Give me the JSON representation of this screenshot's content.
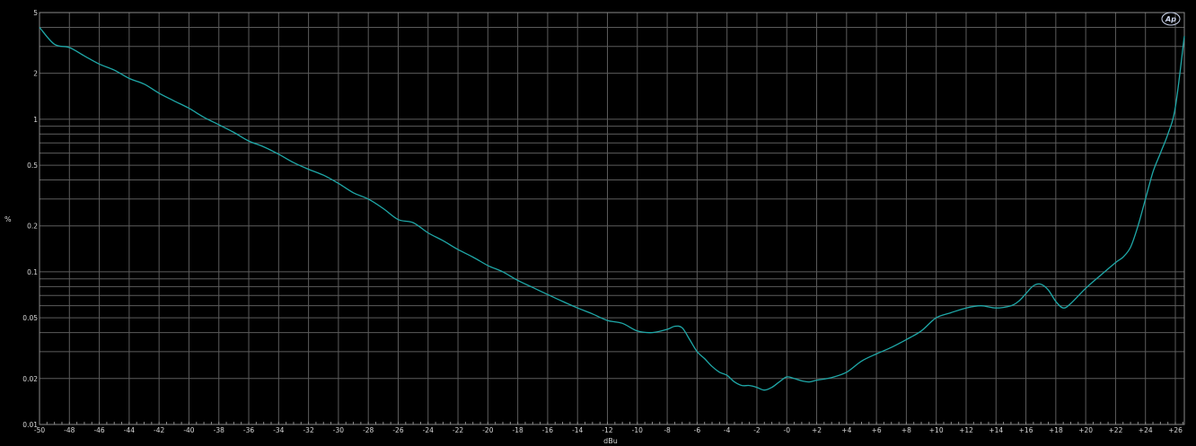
{
  "chart_data": {
    "type": "line",
    "xlabel": "dBu",
    "ylabel": "%",
    "y_scale": "log",
    "xlim": [
      -50,
      26.6
    ],
    "ylim": [
      0.01,
      5
    ],
    "grid": true,
    "x_ticks": [
      -50,
      -48,
      -46,
      -44,
      -42,
      -40,
      -38,
      -36,
      -34,
      -32,
      -30,
      -28,
      -26,
      -24,
      -22,
      -20,
      -18,
      -16,
      -14,
      -12,
      -10,
      -8,
      -6,
      -4,
      -2,
      0,
      2,
      4,
      6,
      8,
      10,
      12,
      14,
      16,
      18,
      20,
      22,
      24,
      26
    ],
    "x_tick_labels": [
      "-50",
      "-48",
      "-46",
      "-44",
      "-42",
      "-40",
      "-38",
      "-36",
      "-34",
      "-32",
      "-30",
      "-28",
      "-26",
      "-24",
      "-22",
      "-20",
      "-18",
      "-16",
      "-14",
      "-12",
      "-10",
      "-8",
      "-6",
      "-4",
      "-2",
      "-0",
      "+2",
      "+4",
      "+6",
      "+8",
      "+10",
      "+12",
      "+14",
      "+16",
      "+18",
      "+20",
      "+22",
      "+24",
      "+26"
    ],
    "y_ticks": [
      5,
      2,
      1,
      0.5,
      0.2,
      0.1,
      0.05,
      0.02,
      0.01
    ],
    "y_tick_labels": [
      "5",
      "2",
      "1",
      "0.5",
      "0.2",
      "0.1",
      "0.05",
      "0.02",
      "0.01"
    ],
    "y_gridlines": [
      4,
      3,
      2,
      1,
      0.9,
      0.8,
      0.7,
      0.6,
      0.5,
      0.4,
      0.3,
      0.2,
      0.1,
      0.09,
      0.08,
      0.07,
      0.06,
      0.05,
      0.04,
      0.03,
      0.02
    ],
    "series": [
      {
        "color": "#1fa8a8",
        "x": [
          -50,
          -49,
          -48,
          -47,
          -46,
          -45,
          -44,
          -43,
          -42,
          -41,
          -40,
          -39,
          -38,
          -37,
          -36,
          -35,
          -34,
          -33,
          -32,
          -31,
          -30,
          -29,
          -28,
          -27,
          -26,
          -25,
          -24,
          -23,
          -22,
          -21,
          -20,
          -19,
          -18,
          -17,
          -16,
          -15,
          -14,
          -13,
          -12,
          -11,
          -10,
          -9,
          -8,
          -7.5,
          -7,
          -6.5,
          -6,
          -5.5,
          -5,
          -4.5,
          -4,
          -3.5,
          -3,
          -2.5,
          -2,
          -1.5,
          -1,
          -0.5,
          0,
          0.5,
          1,
          1.5,
          2,
          3,
          4,
          5,
          6,
          7,
          8,
          9,
          10,
          11,
          12,
          13,
          14,
          15,
          15.5,
          16,
          16.5,
          17,
          17.5,
          18,
          18.5,
          19,
          20,
          21,
          22,
          22.5,
          23,
          23.5,
          24,
          24.5,
          25,
          25.5,
          26,
          26.6
        ],
        "y": [
          4.0,
          3.1,
          2.95,
          2.6,
          2.3,
          2.1,
          1.85,
          1.7,
          1.48,
          1.32,
          1.18,
          1.03,
          0.92,
          0.82,
          0.72,
          0.66,
          0.59,
          0.52,
          0.47,
          0.43,
          0.38,
          0.33,
          0.3,
          0.26,
          0.22,
          0.21,
          0.18,
          0.16,
          0.14,
          0.125,
          0.11,
          0.1,
          0.088,
          0.079,
          0.071,
          0.064,
          0.058,
          0.053,
          0.048,
          0.046,
          0.041,
          0.04,
          0.042,
          0.044,
          0.043,
          0.036,
          0.03,
          0.027,
          0.024,
          0.022,
          0.021,
          0.019,
          0.018,
          0.018,
          0.0175,
          0.0168,
          0.0175,
          0.019,
          0.0205,
          0.02,
          0.0193,
          0.019,
          0.0195,
          0.0203,
          0.022,
          0.026,
          0.029,
          0.032,
          0.036,
          0.041,
          0.05,
          0.054,
          0.058,
          0.06,
          0.058,
          0.06,
          0.064,
          0.072,
          0.081,
          0.083,
          0.076,
          0.064,
          0.058,
          0.062,
          0.078,
          0.095,
          0.115,
          0.125,
          0.145,
          0.2,
          0.3,
          0.45,
          0.6,
          0.8,
          1.2,
          3.5
        ]
      }
    ]
  },
  "logo": {
    "text": "Ap"
  }
}
